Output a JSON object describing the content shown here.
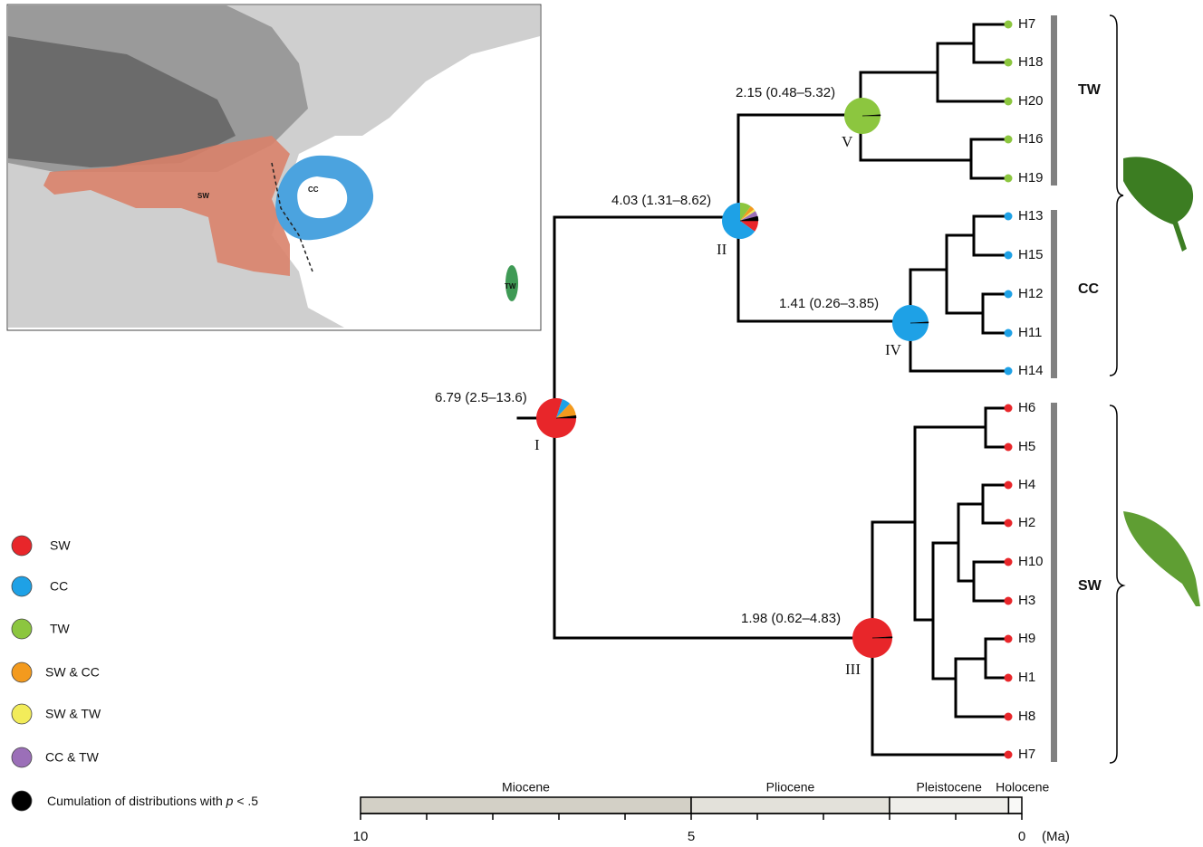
{
  "map": {
    "labels": [
      "SW",
      "CC",
      "TW"
    ]
  },
  "legend": [
    {
      "label": "SW",
      "color": "#e8262a"
    },
    {
      "label": "CC",
      "color": "#1ea1e6"
    },
    {
      "label": "TW",
      "color": "#8cc63f"
    },
    {
      "label": "SW & CC",
      "color": "#f39a1e"
    },
    {
      "label": "SW & TW",
      "color": "#f2ec5a"
    },
    {
      "label": "CC & TW",
      "color": "#9b6fb8"
    },
    {
      "label": [
        "Cumulation of distributions with ",
        "p",
        " < .5"
      ],
      "color": "#000000"
    }
  ],
  "nodes": [
    {
      "label": "I",
      "age": "6.79 (2.5–13.6)",
      "pie": [
        80,
        7,
        0,
        11,
        0,
        0,
        2
      ]
    },
    {
      "label": "II",
      "age": "4.03 (1.31–8.62)",
      "pie": [
        10,
        65,
        10,
        4,
        2,
        5,
        4
      ]
    },
    {
      "label": "III",
      "age": "1.98 (0.62–4.83)",
      "pie": [
        99,
        0,
        0,
        0,
        0,
        0,
        1
      ]
    },
    {
      "label": "IV",
      "age": "1.41 (0.26–3.85)",
      "pie": [
        0,
        99,
        0,
        0,
        0,
        0,
        1
      ]
    },
    {
      "label": "V",
      "age": "2.15 (0.48–5.32)",
      "pie": [
        0,
        0,
        99,
        0,
        0,
        0,
        1
      ]
    }
  ],
  "tips": [
    {
      "label": "H7",
      "color": "#8cc63f"
    },
    {
      "label": "H18",
      "color": "#8cc63f"
    },
    {
      "label": "H20",
      "color": "#8cc63f"
    },
    {
      "label": "H16",
      "color": "#8cc63f"
    },
    {
      "label": "H19",
      "color": "#8cc63f"
    },
    {
      "label": "H13",
      "color": "#1ea1e6"
    },
    {
      "label": "H15",
      "color": "#1ea1e6"
    },
    {
      "label": "H12",
      "color": "#1ea1e6"
    },
    {
      "label": "H11",
      "color": "#1ea1e6"
    },
    {
      "label": "H14",
      "color": "#1ea1e6"
    },
    {
      "label": "H6",
      "color": "#e8262a"
    },
    {
      "label": "H5",
      "color": "#e8262a"
    },
    {
      "label": "H4",
      "color": "#e8262a"
    },
    {
      "label": "H2",
      "color": "#e8262a"
    },
    {
      "label": "H10",
      "color": "#e8262a"
    },
    {
      "label": "H3",
      "color": "#e8262a"
    },
    {
      "label": "H9",
      "color": "#e8262a"
    },
    {
      "label": "H1",
      "color": "#e8262a"
    },
    {
      "label": "H8",
      "color": "#e8262a"
    },
    {
      "label": "H7",
      "color": "#e8262a"
    }
  ],
  "clades": [
    "TW",
    "CC",
    "SW"
  ],
  "timescale": {
    "unit": "(Ma)",
    "xlim": [
      10,
      0
    ],
    "ticks": [
      10,
      5,
      0
    ],
    "minor_ticks": [
      9,
      8,
      7,
      6,
      4,
      3,
      2,
      1
    ],
    "epochs": [
      {
        "name": "Miocene",
        "range": [
          10,
          5
        ],
        "color": "#d3d0c6"
      },
      {
        "name": "Pliocene",
        "range": [
          5,
          2
        ],
        "color": "#e3e1da"
      },
      {
        "name": "Pleistocene",
        "range": [
          2,
          0.2
        ],
        "color": "#efeeea"
      },
      {
        "name": "Holocene",
        "range": [
          0.2,
          0
        ],
        "color": "#f9f9f7"
      }
    ]
  }
}
